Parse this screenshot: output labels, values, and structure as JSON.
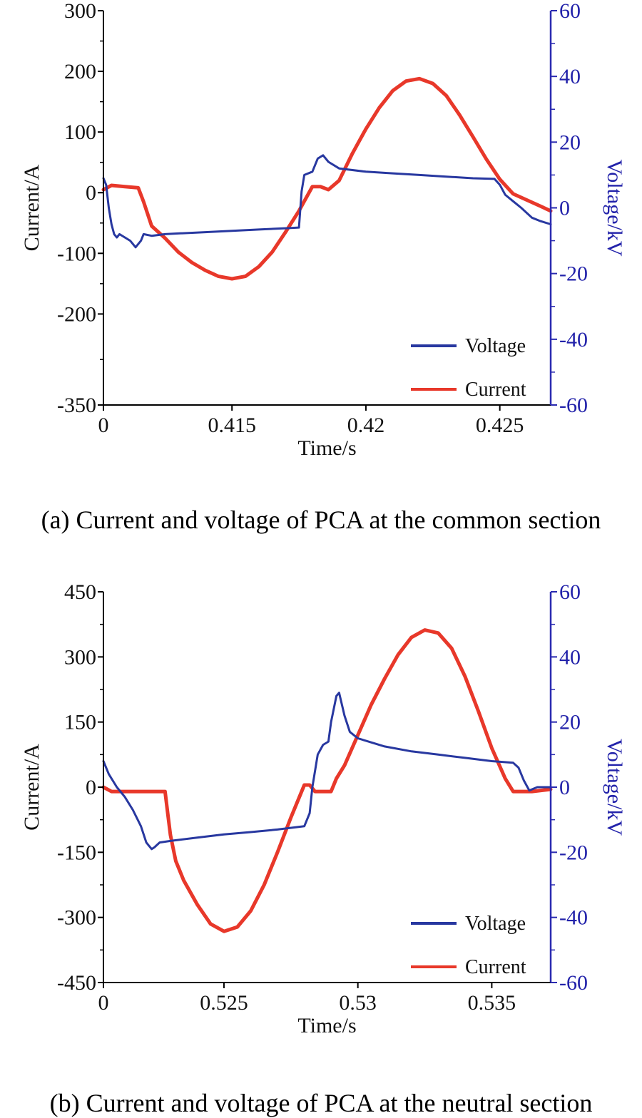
{
  "chart_data": [
    {
      "id": "a",
      "type": "line",
      "caption": "(a) Current and voltage of PCA at the common section",
      "xlabel": "Time/s",
      "ylabel_left": "Current/A",
      "ylabel_right": "Voltage/kV",
      "xlim": [
        0.4102,
        0.4269
      ],
      "x_tick_values": [
        0.4102,
        0.415,
        0.42,
        0.425
      ],
      "x_tick_labels": [
        "0",
        "0.415",
        "0.42",
        "0.425"
      ],
      "ylim_left": [
        -350,
        300
      ],
      "y_left_ticks": [
        -350,
        -200,
        -100,
        0,
        100,
        200,
        300
      ],
      "y_left_tick_labels": [
        "-350",
        "-200",
        "-100",
        "0",
        "100",
        "200",
        "300"
      ],
      "ylim_right": [
        -60,
        60
      ],
      "y_right_ticks": [
        -60,
        -40,
        -20,
        0,
        20,
        40,
        60
      ],
      "y_right_tick_labels": [
        "-60",
        "-40",
        "-20",
        "0",
        "20",
        "40",
        "60"
      ],
      "legend": [
        "Voltage",
        "Current"
      ],
      "series": [
        {
          "name": "Current",
          "axis": "left",
          "color": "#e8382a",
          "points": [
            [
              0.4102,
              5
            ],
            [
              0.4105,
              12
            ],
            [
              0.411,
              10
            ],
            [
              0.4115,
              8
            ],
            [
              0.4117,
              -15
            ],
            [
              0.412,
              -55
            ],
            [
              0.4125,
              -75
            ],
            [
              0.413,
              -98
            ],
            [
              0.4135,
              -115
            ],
            [
              0.414,
              -128
            ],
            [
              0.4145,
              -138
            ],
            [
              0.415,
              -142
            ],
            [
              0.4155,
              -138
            ],
            [
              0.416,
              -122
            ],
            [
              0.4165,
              -98
            ],
            [
              0.417,
              -65
            ],
            [
              0.4175,
              -30
            ],
            [
              0.418,
              10
            ],
            [
              0.4183,
              10
            ],
            [
              0.4186,
              5
            ],
            [
              0.419,
              20
            ],
            [
              0.4195,
              65
            ],
            [
              0.42,
              105
            ],
            [
              0.4205,
              140
            ],
            [
              0.421,
              168
            ],
            [
              0.4215,
              184
            ],
            [
              0.422,
              188
            ],
            [
              0.4225,
              180
            ],
            [
              0.423,
              160
            ],
            [
              0.4235,
              128
            ],
            [
              0.424,
              92
            ],
            [
              0.4245,
              55
            ],
            [
              0.425,
              22
            ],
            [
              0.4255,
              -2
            ],
            [
              0.426,
              -12
            ],
            [
              0.4265,
              -22
            ],
            [
              0.4269,
              -30
            ]
          ]
        },
        {
          "name": "Voltage",
          "axis": "right",
          "color": "#2838a0",
          "points": [
            [
              0.4102,
              9
            ],
            [
              0.4103,
              7
            ],
            [
              0.4104,
              0
            ],
            [
              0.4105,
              -5
            ],
            [
              0.4106,
              -8
            ],
            [
              0.4107,
              -9
            ],
            [
              0.4108,
              -8
            ],
            [
              0.411,
              -9
            ],
            [
              0.4112,
              -10
            ],
            [
              0.4114,
              -12
            ],
            [
              0.4116,
              -10
            ],
            [
              0.4117,
              -8
            ],
            [
              0.412,
              -8.5
            ],
            [
              0.4125,
              -8
            ],
            [
              0.413,
              -7.8
            ],
            [
              0.414,
              -7.4
            ],
            [
              0.415,
              -7
            ],
            [
              0.416,
              -6.6
            ],
            [
              0.417,
              -6.2
            ],
            [
              0.4175,
              -6
            ],
            [
              0.4176,
              5
            ],
            [
              0.4177,
              10
            ],
            [
              0.418,
              11
            ],
            [
              0.4182,
              15
            ],
            [
              0.4184,
              16
            ],
            [
              0.4186,
              14
            ],
            [
              0.419,
              12
            ],
            [
              0.42,
              11
            ],
            [
              0.421,
              10.5
            ],
            [
              0.422,
              10
            ],
            [
              0.423,
              9.5
            ],
            [
              0.424,
              9
            ],
            [
              0.4248,
              8.8
            ],
            [
              0.425,
              7
            ],
            [
              0.4252,
              4
            ],
            [
              0.4255,
              2
            ],
            [
              0.4258,
              0
            ],
            [
              0.4262,
              -3
            ],
            [
              0.4265,
              -4
            ],
            [
              0.4269,
              -5
            ]
          ]
        }
      ]
    },
    {
      "id": "b",
      "type": "line",
      "caption": "(b) Current and voltage of PCA at the neutral section",
      "xlabel": "Time/s",
      "ylabel_left": "Current/A",
      "ylabel_right": "Voltage/kV",
      "xlim": [
        0.5205,
        0.5372
      ],
      "x_tick_values": [
        0.5205,
        0.525,
        0.53,
        0.535
      ],
      "x_tick_labels": [
        "0",
        "0.525",
        "0.53",
        "0.535"
      ],
      "ylim_left": [
        -450,
        450
      ],
      "y_left_ticks": [
        -450,
        -300,
        -150,
        0,
        150,
        300,
        450
      ],
      "y_left_tick_labels": [
        "-450",
        "-300",
        "-150",
        "0",
        "150",
        "300",
        "450"
      ],
      "ylim_right": [
        -60,
        60
      ],
      "y_right_ticks": [
        -60,
        -40,
        -20,
        0,
        20,
        40,
        60
      ],
      "y_right_tick_labels": [
        "-60",
        "-40",
        "-20",
        "0",
        "20",
        "40",
        "60"
      ],
      "legend": [
        "Voltage",
        "Current"
      ],
      "series": [
        {
          "name": "Current",
          "axis": "left",
          "color": "#e8382a",
          "points": [
            [
              0.5205,
              0
            ],
            [
              0.5208,
              -10
            ],
            [
              0.5215,
              -10
            ],
            [
              0.522,
              -10
            ],
            [
              0.5228,
              -10
            ],
            [
              0.5229,
              -60
            ],
            [
              0.523,
              -110
            ],
            [
              0.5232,
              -170
            ],
            [
              0.5235,
              -215
            ],
            [
              0.524,
              -270
            ],
            [
              0.5245,
              -315
            ],
            [
              0.525,
              -332
            ],
            [
              0.5255,
              -322
            ],
            [
              0.526,
              -285
            ],
            [
              0.5265,
              -225
            ],
            [
              0.527,
              -150
            ],
            [
              0.5275,
              -70
            ],
            [
              0.528,
              5
            ],
            [
              0.5282,
              5
            ],
            [
              0.5284,
              -10
            ],
            [
              0.529,
              -10
            ],
            [
              0.5292,
              20
            ],
            [
              0.5295,
              50
            ],
            [
              0.53,
              120
            ],
            [
              0.5305,
              190
            ],
            [
              0.531,
              250
            ],
            [
              0.5315,
              305
            ],
            [
              0.532,
              345
            ],
            [
              0.5325,
              362
            ],
            [
              0.533,
              355
            ],
            [
              0.5335,
              320
            ],
            [
              0.534,
              255
            ],
            [
              0.5345,
              175
            ],
            [
              0.535,
              90
            ],
            [
              0.5355,
              20
            ],
            [
              0.5358,
              -10
            ],
            [
              0.5365,
              -10
            ],
            [
              0.5372,
              -5
            ]
          ]
        },
        {
          "name": "Voltage",
          "axis": "right",
          "color": "#2838a0",
          "points": [
            [
              0.5205,
              8
            ],
            [
              0.5207,
              4
            ],
            [
              0.521,
              0
            ],
            [
              0.5213,
              -3
            ],
            [
              0.5216,
              -7
            ],
            [
              0.5219,
              -12
            ],
            [
              0.5221,
              -17
            ],
            [
              0.5222,
              -18
            ],
            [
              0.5223,
              -19
            ],
            [
              0.5224,
              -18.5
            ],
            [
              0.5226,
              -17
            ],
            [
              0.523,
              -16.5
            ],
            [
              0.524,
              -15.5
            ],
            [
              0.525,
              -14.5
            ],
            [
              0.526,
              -13.8
            ],
            [
              0.527,
              -13
            ],
            [
              0.528,
              -12
            ],
            [
              0.5282,
              -8
            ],
            [
              0.5283,
              0
            ],
            [
              0.5285,
              10
            ],
            [
              0.5287,
              13
            ],
            [
              0.5289,
              14
            ],
            [
              0.529,
              20
            ],
            [
              0.5292,
              28
            ],
            [
              0.5293,
              29
            ],
            [
              0.5295,
              22
            ],
            [
              0.5297,
              17
            ],
            [
              0.53,
              15
            ],
            [
              0.531,
              12.5
            ],
            [
              0.532,
              11
            ],
            [
              0.533,
              10
            ],
            [
              0.534,
              9
            ],
            [
              0.535,
              8
            ],
            [
              0.5358,
              7.5
            ],
            [
              0.536,
              6
            ],
            [
              0.5362,
              2
            ],
            [
              0.5364,
              -1
            ],
            [
              0.5367,
              0
            ],
            [
              0.5372,
              0
            ]
          ]
        }
      ]
    }
  ]
}
